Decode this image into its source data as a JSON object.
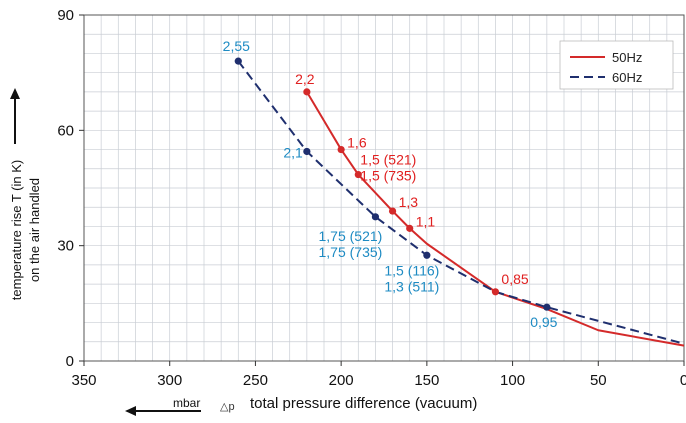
{
  "chart_data": {
    "type": "line",
    "xlabel_prefix": "△p",
    "xlabel": "total pressure difference (vacuum)",
    "xunit": "mbar",
    "ylabel_line1": "temperature rise T (in K)",
    "ylabel_line2": "on the air handled",
    "xlim": [
      350,
      0
    ],
    "ylim": [
      0,
      90
    ],
    "xticks": [
      350,
      300,
      250,
      200,
      150,
      100,
      50,
      0
    ],
    "yticks": [
      0,
      30,
      60,
      90
    ],
    "grid": true,
    "legend_position": "top-right",
    "series": [
      {
        "name": "50Hz",
        "color": "#d42a2a",
        "dash": "solid",
        "x": [
          220,
          200,
          190,
          170,
          160,
          150,
          110,
          80,
          50,
          0
        ],
        "y": [
          70,
          55,
          48.5,
          39,
          34.5,
          30.5,
          18,
          13.5,
          8,
          4
        ],
        "points": [
          {
            "x": 220,
            "y": 70,
            "labels": [
              "2,2"
            ]
          },
          {
            "x": 200,
            "y": 55,
            "labels": [
              "1,6"
            ]
          },
          {
            "x": 190,
            "y": 48.5,
            "labels": [
              "1,5 (521)",
              "1,5 (735)"
            ]
          },
          {
            "x": 170,
            "y": 39,
            "labels": [
              "1,3"
            ]
          },
          {
            "x": 160,
            "y": 34.5,
            "labels": [
              "1,1"
            ]
          },
          {
            "x": 110,
            "y": 18,
            "labels": [
              "0,85"
            ]
          }
        ]
      },
      {
        "name": "60Hz",
        "color": "#1f2f6e",
        "dash": "dashed",
        "x": [
          260,
          220,
          180,
          150,
          110,
          80,
          0
        ],
        "y": [
          78,
          54.5,
          37.5,
          27.5,
          18,
          14,
          4.5
        ],
        "points": [
          {
            "x": 260,
            "y": 78,
            "labels": [
              "2,55"
            ]
          },
          {
            "x": 220,
            "y": 54.5,
            "labels": [
              "2,1"
            ]
          },
          {
            "x": 180,
            "y": 37.5,
            "labels": [
              "1,75 (521)",
              "1,75 (735)"
            ]
          },
          {
            "x": 150,
            "y": 27.5,
            "labels": [
              "1,5 (116)",
              "1,3 (511)"
            ]
          },
          {
            "x": 80,
            "y": 14,
            "labels": [
              "0,95"
            ]
          }
        ]
      }
    ],
    "label_colors": {
      "50Hz": "#e02020",
      "60Hz": "#1e8bc3"
    }
  }
}
